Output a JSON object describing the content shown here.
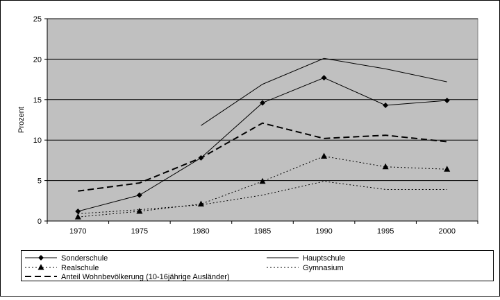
{
  "chart_data": {
    "type": "line",
    "title": "",
    "xlabel": "",
    "ylabel": "Prozent",
    "categories": [
      "1970",
      "1975",
      "1980",
      "1985",
      "1990",
      "1995",
      "2000"
    ],
    "ylim": [
      0,
      25
    ],
    "yticks": [
      "0",
      "5",
      "10",
      "15",
      "20",
      "25"
    ],
    "grid": "horizontal",
    "legend_position": "bottom",
    "series": [
      {
        "name": "Sonderschule",
        "values": [
          1.2,
          3.2,
          7.8,
          14.6,
          17.7,
          14.3,
          14.9
        ],
        "color": "#000000",
        "style": "solid",
        "marker": "diamond"
      },
      {
        "name": "Hauptschule",
        "values": [
          null,
          null,
          11.8,
          16.9,
          20.1,
          18.8,
          17.2
        ],
        "color": "#000000",
        "style": "solid",
        "marker": "none"
      },
      {
        "name": "Realschule",
        "values": [
          0.5,
          1.2,
          2.1,
          4.9,
          8.0,
          6.7,
          6.4
        ],
        "color": "#000000",
        "style": "dotted",
        "marker": "triangle"
      },
      {
        "name": "Gymnasium",
        "values": [
          0.9,
          1.4,
          2.0,
          3.2,
          4.9,
          3.9,
          3.9
        ],
        "color": "#000000",
        "style": "dotted",
        "marker": "none"
      },
      {
        "name": "Anteil Wohnbevölkerung (10-16jährige Ausländer)",
        "values": [
          3.7,
          4.7,
          7.8,
          12.1,
          10.2,
          10.6,
          9.8
        ],
        "color": "#000000",
        "style": "dashed",
        "marker": "none"
      }
    ],
    "plot_background": "#c0c0c0"
  }
}
